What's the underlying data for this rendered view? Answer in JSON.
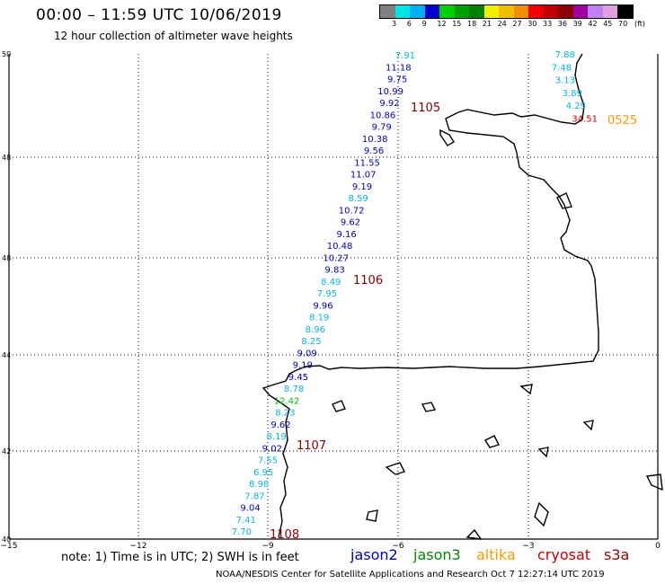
{
  "title": "00:00 – 11:59 UTC 10/06/2019",
  "subtitle": "12 hour collection of altimeter wave heights",
  "color_scale": {
    "unit": "(ft)",
    "labels": [
      "3",
      "6",
      "9",
      "12",
      "15",
      "18",
      "21",
      "24",
      "27",
      "30",
      "33",
      "36",
      "39",
      "42",
      "45",
      "70"
    ],
    "colors": [
      "#808080",
      "#00e5e5",
      "#00b0f0",
      "#0000d0",
      "#00d000",
      "#00a000",
      "#008000",
      "#f0f000",
      "#f0c000",
      "#f09000",
      "#f00000",
      "#c00000",
      "#900000",
      "#a000a0",
      "#c080f0",
      "#e0a0e0",
      "#000000"
    ]
  },
  "axes": {
    "lat_labels": [
      "50",
      "48",
      "48",
      "44",
      "42",
      "40"
    ],
    "lon_labels": [
      "−15",
      "−12",
      "−9",
      "−6",
      "−3",
      "0"
    ]
  },
  "passes": [
    {
      "id": "1105",
      "satellite": "jason2",
      "label_color": "#8b0000"
    },
    {
      "id": "1106",
      "satellite": "jason2",
      "label_color": "#8b0000"
    },
    {
      "id": "1107",
      "satellite": "jason2",
      "label_color": "#8b0000"
    },
    {
      "id": "1108",
      "satellite": "jason2",
      "label_color": "#8b0000"
    },
    {
      "id": "0525",
      "satellite": "altika",
      "label_color": "#ff9900"
    }
  ],
  "track_values": [
    {
      "v": "7.91",
      "c": "#00b8e0"
    },
    {
      "v": "11.18",
      "c": "#0000c0"
    },
    {
      "v": "9.75",
      "c": "#0000c0"
    },
    {
      "v": "10.99",
      "c": "#0000c0"
    },
    {
      "v": "9.92",
      "c": "#0000c0"
    },
    {
      "v": "10.86",
      "c": "#0000c0"
    },
    {
      "v": "9.79",
      "c": "#0000c0"
    },
    {
      "v": "10.38",
      "c": "#0000c0"
    },
    {
      "v": "9.56",
      "c": "#0000c0"
    },
    {
      "v": "11.55",
      "c": "#0000c0"
    },
    {
      "v": "11.07",
      "c": "#0000c0"
    },
    {
      "v": "9.19",
      "c": "#0000c0"
    },
    {
      "v": "8.59",
      "c": "#00b8e0"
    },
    {
      "v": "10.72",
      "c": "#0000c0"
    },
    {
      "v": "9.62",
      "c": "#0000c0"
    },
    {
      "v": "9.16",
      "c": "#0000c0"
    },
    {
      "v": "10.48",
      "c": "#0000c0"
    },
    {
      "v": "10.27",
      "c": "#0000c0"
    },
    {
      "v": "9.83",
      "c": "#0000c0"
    },
    {
      "v": "8.49",
      "c": "#00b8e0"
    },
    {
      "v": "7.95",
      "c": "#00b8e0"
    },
    {
      "v": "9.96",
      "c": "#0000c0"
    },
    {
      "v": "8.19",
      "c": "#00b8e0"
    },
    {
      "v": "8.96",
      "c": "#00b8e0"
    },
    {
      "v": "8.25",
      "c": "#00b8e0"
    },
    {
      "v": "9.09",
      "c": "#0000c0"
    },
    {
      "v": "9.19",
      "c": "#0000c0"
    },
    {
      "v": "9.45",
      "c": "#0000c0"
    },
    {
      "v": "8.78",
      "c": "#00b8e0"
    },
    {
      "v": "12.42",
      "c": "#00c000"
    },
    {
      "v": "8.23",
      "c": "#00b8e0"
    },
    {
      "v": "9.62",
      "c": "#0000c0"
    },
    {
      "v": "8.19",
      "c": "#00b8e0"
    },
    {
      "v": "9.02",
      "c": "#0000c0"
    },
    {
      "v": "7.55",
      "c": "#00b8e0"
    },
    {
      "v": "6.95",
      "c": "#00b8e0"
    },
    {
      "v": "8.98",
      "c": "#00b8e0"
    },
    {
      "v": "7.87",
      "c": "#00b8e0"
    },
    {
      "v": "9.04",
      "c": "#0000c0"
    },
    {
      "v": "7.41",
      "c": "#00b8e0"
    },
    {
      "v": "7.70",
      "c": "#00b8e0"
    }
  ],
  "altika_values": [
    {
      "v": "7.88",
      "c": "#00b8e0"
    },
    {
      "v": "7.48",
      "c": "#00b8e0"
    },
    {
      "v": "3.13",
      "c": "#00b8e0"
    },
    {
      "v": "3.89",
      "c": "#00b8e0"
    },
    {
      "v": "4.29",
      "c": "#00b8e0"
    },
    {
      "v": "34.51",
      "c": "#c00000"
    }
  ],
  "note": "note: 1) Time is in UTC; 2) SWH is in feet",
  "legend": [
    {
      "name": "jason2",
      "color": "#0000cc"
    },
    {
      "name": "jason3",
      "color": "#008800"
    },
    {
      "name": "altika",
      "color": "#ff9900"
    },
    {
      "name": "cryosat",
      "color": "#cc0000"
    },
    {
      "name": "s3a",
      "color": "#990000"
    }
  ],
  "credit": "NOAA/NESDIS Center for Satellite Applications and Research    Oct  7 12:27:14 UTC 2019"
}
